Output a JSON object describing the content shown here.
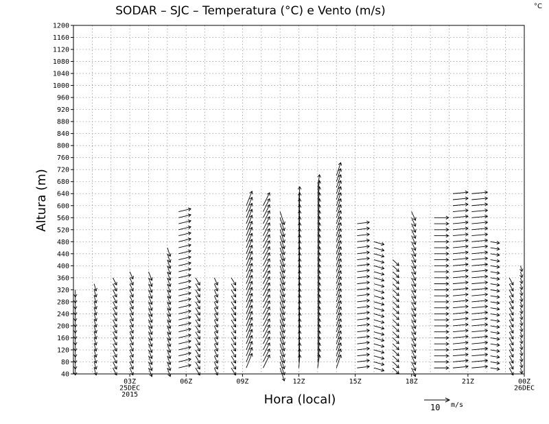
{
  "chart_data": {
    "type": "wind-barb profile (time-height)",
    "title": "SODAR – SJC – Temperatura (°C) e Vento (m/s)",
    "corner_unit": "°C",
    "xlabel": "Hora (local)",
    "ylabel": "Altura (m)",
    "y_range": [
      40,
      1200
    ],
    "y_step": 40,
    "x_range_hours": [
      0,
      24
    ],
    "x_ticks": [
      {
        "hour": 3,
        "lines": [
          "03Z",
          "25DEC",
          "2015"
        ]
      },
      {
        "hour": 6,
        "lines": [
          "06Z"
        ]
      },
      {
        "hour": 9,
        "lines": [
          "09Z"
        ]
      },
      {
        "hour": 12,
        "lines": [
          "12Z"
        ]
      },
      {
        "hour": 15,
        "lines": [
          "15Z"
        ]
      },
      {
        "hour": 18,
        "lines": [
          "18Z"
        ]
      },
      {
        "hour": 21,
        "lines": [
          "21Z"
        ]
      },
      {
        "hour": 24,
        "lines": [
          "00Z",
          "26DEC"
        ]
      }
    ],
    "grid": true,
    "legend": {
      "value": "10",
      "unit": "m/s",
      "placement": "bottom-right"
    },
    "wind_profiles": [
      {
        "hour": 0.1,
        "max_alt": 320,
        "u": 0,
        "v": -2.5
      },
      {
        "hour": 1.1,
        "max_alt": 340,
        "u": 0.5,
        "v": -2.5
      },
      {
        "hour": 2.1,
        "max_alt": 360,
        "u": 0.8,
        "v": -2.5
      },
      {
        "hour": 3.0,
        "max_alt": 380,
        "u": 1.0,
        "v": -2.5
      },
      {
        "hour": 4.0,
        "max_alt": 380,
        "u": 0.8,
        "v": -3
      },
      {
        "hour": 5.0,
        "max_alt": 460,
        "u": 1.0,
        "v": -3
      },
      {
        "hour": 5.6,
        "max_alt": 580,
        "u": 4,
        "v": 1
      },
      {
        "hour": 6.5,
        "max_alt": 360,
        "u": 1,
        "v": -2.5
      },
      {
        "hour": 7.5,
        "max_alt": 360,
        "u": 1,
        "v": -2.5
      },
      {
        "hour": 8.4,
        "max_alt": 360,
        "u": 1.2,
        "v": -2.5
      },
      {
        "hour": 9.2,
        "max_alt": 600,
        "u": 2,
        "v": 5
      },
      {
        "hour": 10.1,
        "max_alt": 600,
        "u": 2,
        "v": 4.5
      },
      {
        "hour": 11.0,
        "max_alt": 580,
        "u": 1,
        "v": -4.5
      },
      {
        "hour": 12.0,
        "max_alt": 620,
        "u": 0.2,
        "v": 4.5
      },
      {
        "hour": 13.0,
        "max_alt": 660,
        "u": 0.3,
        "v": 4.5
      },
      {
        "hour": 14.0,
        "max_alt": 700,
        "u": 1.5,
        "v": 4.5
      },
      {
        "hour": 15.1,
        "max_alt": 540,
        "u": 4,
        "v": 0.5
      },
      {
        "hour": 16.0,
        "max_alt": 480,
        "u": 3,
        "v": -1
      },
      {
        "hour": 17.0,
        "max_alt": 420,
        "u": 2,
        "v": -2
      },
      {
        "hour": 18.0,
        "max_alt": 580,
        "u": 1,
        "v": -3
      },
      {
        "hour": 19.2,
        "max_alt": 560,
        "u": 5,
        "v": 0
      },
      {
        "hour": 20.2,
        "max_alt": 640,
        "u": 5,
        "v": 0.5
      },
      {
        "hour": 21.2,
        "max_alt": 640,
        "u": 5,
        "v": 0.5
      },
      {
        "hour": 22.2,
        "max_alt": 480,
        "u": 3,
        "v": -0.5
      },
      {
        "hour": 23.2,
        "max_alt": 360,
        "u": 1,
        "v": -2.5
      },
      {
        "hour": 23.8,
        "max_alt": 400,
        "u": 0.5,
        "v": -2
      }
    ]
  }
}
